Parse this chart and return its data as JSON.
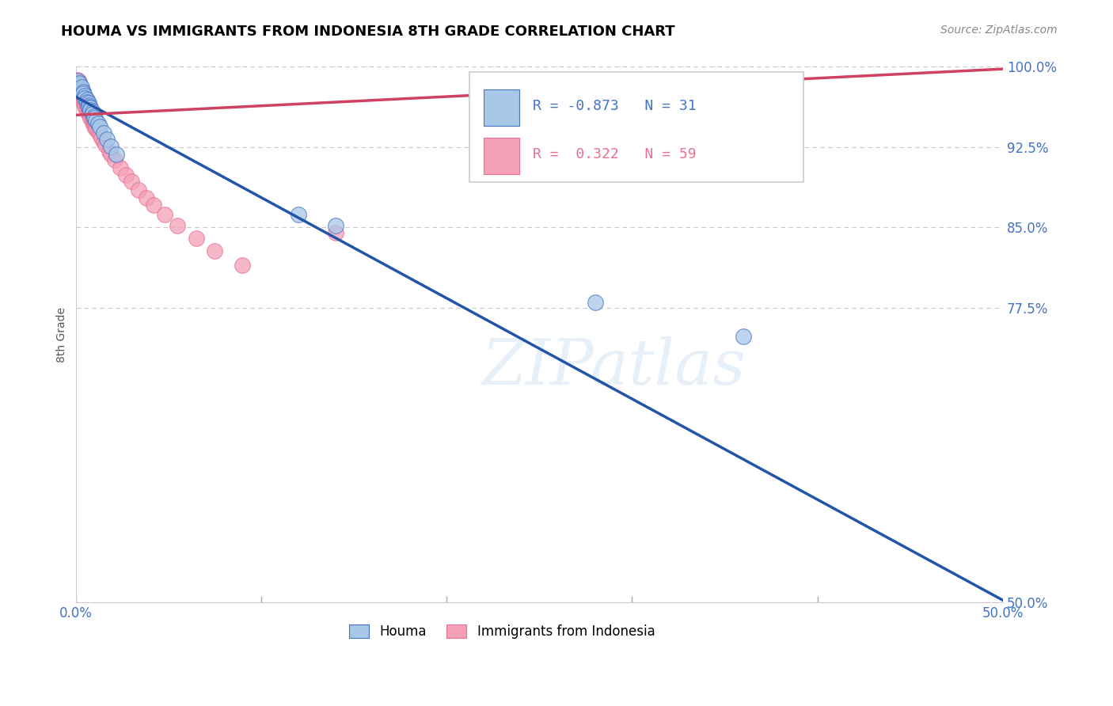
{
  "title": "HOUMA VS IMMIGRANTS FROM INDONESIA 8TH GRADE CORRELATION CHART",
  "source": "Source: ZipAtlas.com",
  "ylabel": "8th Grade",
  "x_min": 0.0,
  "x_max": 0.5,
  "y_min": 0.5,
  "y_max": 1.0,
  "ytick_positions": [
    0.5,
    0.775,
    0.85,
    0.925,
    1.0
  ],
  "ytick_labels": [
    "50.0%",
    "77.5%",
    "85.0%",
    "92.5%",
    "100.0%"
  ],
  "xtick_positions": [
    0.0,
    0.1,
    0.2,
    0.3,
    0.4,
    0.5
  ],
  "xtick_labels": [
    "0.0%",
    "",
    "",
    "",
    "",
    "50.0%"
  ],
  "blue_R": -0.873,
  "blue_N": 31,
  "pink_R": 0.322,
  "pink_N": 59,
  "blue_color": "#A8C8E8",
  "pink_color": "#F4A0B8",
  "blue_edge_color": "#4472C4",
  "pink_edge_color": "#E87090",
  "blue_line_color": "#2255AA",
  "pink_line_color": "#D04060",
  "legend_label_blue": "Houma",
  "legend_label_pink": "Immigrants from Indonesia",
  "watermark_text": "ZIPatlas",
  "blue_scatter_x": [
    0.001,
    0.002,
    0.002,
    0.003,
    0.003,
    0.004,
    0.004,
    0.005,
    0.005,
    0.006,
    0.006,
    0.007,
    0.007,
    0.007,
    0.008,
    0.008,
    0.009,
    0.009,
    0.01,
    0.01,
    0.011,
    0.012,
    0.013,
    0.015,
    0.017,
    0.019,
    0.022,
    0.12,
    0.14,
    0.28,
    0.36
  ],
  "blue_scatter_y": [
    0.987,
    0.983,
    0.985,
    0.979,
    0.981,
    0.977,
    0.975,
    0.973,
    0.971,
    0.969,
    0.967,
    0.966,
    0.964,
    0.963,
    0.962,
    0.96,
    0.958,
    0.956,
    0.954,
    0.952,
    0.95,
    0.947,
    0.944,
    0.938,
    0.932,
    0.926,
    0.918,
    0.862,
    0.852,
    0.78,
    0.748
  ],
  "pink_scatter_x": [
    0.001,
    0.001,
    0.001,
    0.001,
    0.002,
    0.002,
    0.002,
    0.002,
    0.003,
    0.003,
    0.003,
    0.003,
    0.004,
    0.004,
    0.004,
    0.004,
    0.005,
    0.005,
    0.005,
    0.005,
    0.006,
    0.006,
    0.006,
    0.006,
    0.007,
    0.007,
    0.007,
    0.007,
    0.008,
    0.008,
    0.008,
    0.009,
    0.009,
    0.009,
    0.01,
    0.01,
    0.01,
    0.011,
    0.011,
    0.012,
    0.013,
    0.014,
    0.015,
    0.016,
    0.018,
    0.019,
    0.021,
    0.024,
    0.027,
    0.03,
    0.034,
    0.038,
    0.042,
    0.048,
    0.055,
    0.065,
    0.075,
    0.09,
    0.14
  ],
  "pink_scatter_y": [
    0.988,
    0.984,
    0.982,
    0.979,
    0.986,
    0.982,
    0.978,
    0.975,
    0.98,
    0.977,
    0.974,
    0.971,
    0.976,
    0.973,
    0.97,
    0.967,
    0.972,
    0.969,
    0.966,
    0.963,
    0.968,
    0.965,
    0.963,
    0.96,
    0.963,
    0.961,
    0.959,
    0.956,
    0.958,
    0.955,
    0.952,
    0.953,
    0.951,
    0.948,
    0.949,
    0.947,
    0.944,
    0.945,
    0.942,
    0.94,
    0.937,
    0.934,
    0.93,
    0.927,
    0.921,
    0.918,
    0.913,
    0.906,
    0.899,
    0.893,
    0.885,
    0.878,
    0.871,
    0.862,
    0.852,
    0.84,
    0.828,
    0.815,
    0.845
  ],
  "blue_trend_x": [
    0.0,
    0.5
  ],
  "blue_trend_y": [
    0.972,
    0.502
  ],
  "pink_trend_x": [
    0.0,
    0.5
  ],
  "pink_trend_y": [
    0.955,
    0.998
  ]
}
